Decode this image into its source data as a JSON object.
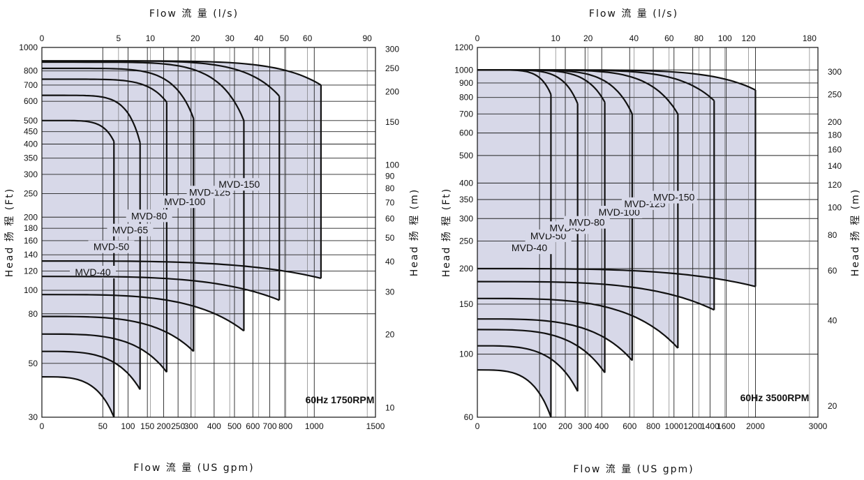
{
  "chart_data": [
    {
      "type": "area",
      "note": "60Hz 1750RPM",
      "top_axis_title": "Flow 流 量 (l/s)",
      "bottom_axis_title": "Flow 流 量 (US gpm)",
      "left_axis_title": "Head 扬 程 (Ft)",
      "right_axis_title": "Head 扬 程 (m)",
      "x_scale": "sqrt",
      "y_scale": "log",
      "xlim": [
        0,
        1500
      ],
      "ylim": [
        30,
        1000
      ],
      "grid": true,
      "bottom_ticks": [
        {
          "value": 0,
          "label": "0"
        },
        {
          "value": 50,
          "label": "50"
        },
        {
          "value": 100,
          "label": "100"
        },
        {
          "value": 150,
          "label": "150"
        },
        {
          "value": 200,
          "label": "200"
        },
        {
          "value": 250,
          "label": "250"
        },
        {
          "value": 300,
          "label": "300"
        },
        {
          "value": 400,
          "label": "400"
        },
        {
          "value": 500,
          "label": "500"
        },
        {
          "value": 600,
          "label": "600"
        },
        {
          "value": 700,
          "label": "700"
        },
        {
          "value": 800,
          "label": "800"
        },
        {
          "value": 1000,
          "label": "1000"
        },
        {
          "value": 1500,
          "label": "1500"
        }
      ],
      "top_ticks": [
        {
          "value": 0,
          "label": "0"
        },
        {
          "value": 5,
          "label": "5"
        },
        {
          "value": 10,
          "label": "10"
        },
        {
          "value": 20,
          "label": "20"
        },
        {
          "value": 30,
          "label": "30"
        },
        {
          "value": 40,
          "label": "40"
        },
        {
          "value": 50,
          "label": "50"
        },
        {
          "value": 60,
          "label": "60"
        },
        {
          "value": 90,
          "label": "90"
        }
      ],
      "left_ticks": [
        {
          "value": 30,
          "label": "30"
        },
        {
          "value": 50,
          "label": "50"
        },
        {
          "value": 80,
          "label": "80"
        },
        {
          "value": 100,
          "label": "100"
        },
        {
          "value": 120,
          "label": "120"
        },
        {
          "value": 140,
          "label": "140"
        },
        {
          "value": 160,
          "label": "160"
        },
        {
          "value": 180,
          "label": "180"
        },
        {
          "value": 200,
          "label": "200"
        },
        {
          "value": 250,
          "label": "250"
        },
        {
          "value": 300,
          "label": "300"
        },
        {
          "value": 350,
          "label": "350"
        },
        {
          "value": 400,
          "label": "400"
        },
        {
          "value": 450,
          "label": "450"
        },
        {
          "value": 500,
          "label": "500"
        },
        {
          "value": 600,
          "label": "600"
        },
        {
          "value": 700,
          "label": "700"
        },
        {
          "value": 800,
          "label": "800"
        },
        {
          "value": 1000,
          "label": "1000"
        }
      ],
      "right_ticks": [
        {
          "value": 10,
          "label": "10"
        },
        {
          "value": 20,
          "label": "20"
        },
        {
          "value": 30,
          "label": "30"
        },
        {
          "value": 40,
          "label": "40"
        },
        {
          "value": 50,
          "label": "50"
        },
        {
          "value": 60,
          "label": "60"
        },
        {
          "value": 70,
          "label": "70"
        },
        {
          "value": 80,
          "label": "80"
        },
        {
          "value": 90,
          "label": "90"
        },
        {
          "value": 100,
          "label": "100"
        },
        {
          "value": 150,
          "label": "150"
        },
        {
          "value": 200,
          "label": "200"
        },
        {
          "value": 250,
          "label": "250"
        },
        {
          "value": 300,
          "label": "300"
        }
      ],
      "series": [
        {
          "name": "MVD-40",
          "q_max": 70,
          "h_shutoff_top": 500,
          "h_end_top": 410,
          "h_shutoff_bottom": 44,
          "h_end_bottom": 30
        },
        {
          "name": "MVD-50",
          "q_max": 130,
          "h_shutoff_top": 635,
          "h_end_top": 405,
          "h_shutoff_bottom": 56,
          "h_end_bottom": 39
        },
        {
          "name": "MVD-65",
          "q_max": 210,
          "h_shutoff_top": 740,
          "h_end_top": 595,
          "h_shutoff_bottom": 66,
          "h_end_bottom": 46
        },
        {
          "name": "MVD-80",
          "q_max": 310,
          "h_shutoff_top": 820,
          "h_end_top": 510,
          "h_shutoff_bottom": 78,
          "h_end_bottom": 56
        },
        {
          "name": "MVD-100",
          "q_max": 550,
          "h_shutoff_top": 870,
          "h_end_top": 500,
          "h_shutoff_bottom": 96,
          "h_end_bottom": 68
        },
        {
          "name": "MVD-125",
          "q_max": 760,
          "h_shutoff_top": 880,
          "h_end_top": 630,
          "h_shutoff_bottom": 114,
          "h_end_bottom": 91
        },
        {
          "name": "MVD-150",
          "q_max": 1050,
          "h_shutoff_top": 880,
          "h_end_top": 700,
          "h_shutoff_bottom": 132,
          "h_end_bottom": 112
        }
      ]
    },
    {
      "type": "area",
      "note": "60Hz 3500RPM",
      "top_axis_title": "Flow 流 量 (l/s)",
      "bottom_axis_title": "Flow 流 量 (US gpm)",
      "left_axis_title": "Head 扬 程 (Ft)",
      "right_axis_title": "Head 扬 程 (m)",
      "x_scale": "sqrt",
      "y_scale": "log",
      "xlim": [
        0,
        3000
      ],
      "ylim": [
        60,
        1200
      ],
      "grid": true,
      "bottom_ticks": [
        {
          "value": 0,
          "label": "0"
        },
        {
          "value": 100,
          "label": "100"
        },
        {
          "value": 200,
          "label": "200"
        },
        {
          "value": 300,
          "label": "300"
        },
        {
          "value": 400,
          "label": "400"
        },
        {
          "value": 600,
          "label": "600"
        },
        {
          "value": 800,
          "label": "800"
        },
        {
          "value": 1000,
          "label": "1000"
        },
        {
          "value": 1200,
          "label": "1200"
        },
        {
          "value": 1400,
          "label": "1400"
        },
        {
          "value": 1600,
          "label": "1600"
        },
        {
          "value": 2000,
          "label": "2000"
        },
        {
          "value": 3000,
          "label": "3000"
        }
      ],
      "top_ticks": [
        {
          "value": 0,
          "label": "0"
        },
        {
          "value": 10,
          "label": "10"
        },
        {
          "value": 20,
          "label": "20"
        },
        {
          "value": 40,
          "label": "40"
        },
        {
          "value": 60,
          "label": "60"
        },
        {
          "value": 80,
          "label": "80"
        },
        {
          "value": 100,
          "label": "100"
        },
        {
          "value": 120,
          "label": "120"
        },
        {
          "value": 180,
          "label": "180"
        }
      ],
      "left_ticks": [
        {
          "value": 60,
          "label": "60"
        },
        {
          "value": 100,
          "label": "100"
        },
        {
          "value": 150,
          "label": "150"
        },
        {
          "value": 200,
          "label": "200"
        },
        {
          "value": 250,
          "label": "250"
        },
        {
          "value": 300,
          "label": "300"
        },
        {
          "value": 350,
          "label": "350"
        },
        {
          "value": 400,
          "label": "400"
        },
        {
          "value": 500,
          "label": "500"
        },
        {
          "value": 600,
          "label": "600"
        },
        {
          "value": 700,
          "label": "700"
        },
        {
          "value": 800,
          "label": "800"
        },
        {
          "value": 900,
          "label": "900"
        },
        {
          "value": 1000,
          "label": "1000"
        },
        {
          "value": 1200,
          "label": "1200"
        }
      ],
      "right_ticks": [
        {
          "value": 20,
          "label": "20"
        },
        {
          "value": 40,
          "label": "40"
        },
        {
          "value": 60,
          "label": "60"
        },
        {
          "value": 80,
          "label": "80"
        },
        {
          "value": 100,
          "label": "100"
        },
        {
          "value": 120,
          "label": "120"
        },
        {
          "value": 140,
          "label": "140"
        },
        {
          "value": 160,
          "label": "160"
        },
        {
          "value": 180,
          "label": "180"
        },
        {
          "value": 200,
          "label": "200"
        },
        {
          "value": 250,
          "label": "250"
        },
        {
          "value": 300,
          "label": "300"
        }
      ],
      "series": [
        {
          "name": "MVD-40",
          "q_max": 140,
          "h_shutoff_top": 1000,
          "h_end_top": 820,
          "h_shutoff_bottom": 88,
          "h_end_bottom": 60
        },
        {
          "name": "MVD-50",
          "q_max": 260,
          "h_shutoff_top": 1000,
          "h_end_top": 760,
          "h_shutoff_bottom": 107,
          "h_end_bottom": 74
        },
        {
          "name": "MVD-65",
          "q_max": 420,
          "h_shutoff_top": 1000,
          "h_end_top": 770,
          "h_shutoff_bottom": 122,
          "h_end_bottom": 86
        },
        {
          "name": "MVD-80",
          "q_max": 620,
          "h_shutoff_top": 1000,
          "h_end_top": 700,
          "h_shutoff_bottom": 133,
          "h_end_bottom": 95
        },
        {
          "name": "MVD-100",
          "q_max": 1040,
          "h_shutoff_top": 1000,
          "h_end_top": 700,
          "h_shutoff_bottom": 157,
          "h_end_bottom": 105
        },
        {
          "name": "MVD-125",
          "q_max": 1450,
          "h_shutoff_top": 1000,
          "h_end_top": 780,
          "h_shutoff_bottom": 180,
          "h_end_bottom": 143
        },
        {
          "name": "MVD-150",
          "q_max": 2000,
          "h_shutoff_top": 1000,
          "h_end_top": 850,
          "h_shutoff_bottom": 200,
          "h_end_bottom": 173
        }
      ]
    }
  ],
  "colors": {
    "region_fill": "#d7d8e8",
    "curve_stroke": "#111111",
    "grid_line": "#222222",
    "background": "#ffffff"
  }
}
